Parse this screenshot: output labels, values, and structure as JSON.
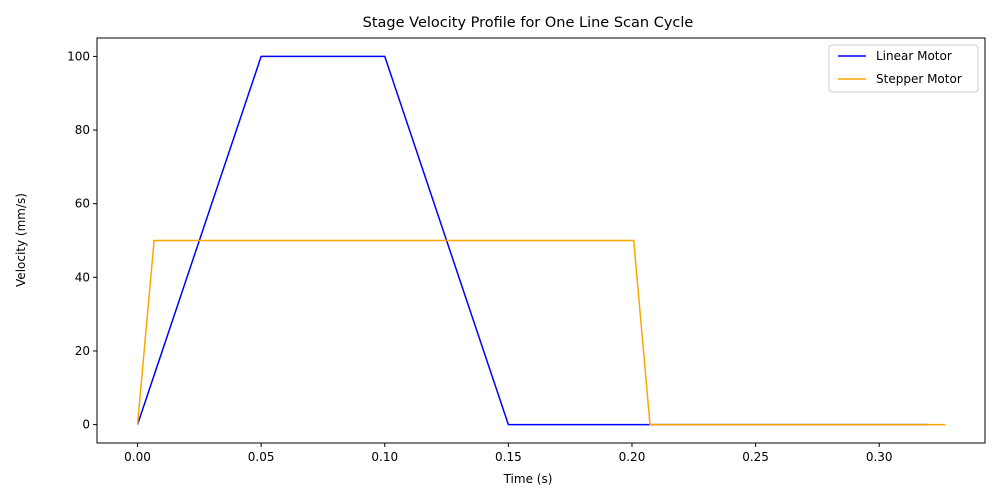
{
  "chart_data": {
    "type": "line",
    "title": "Stage Velocity Profile for One Line Scan Cycle",
    "xlabel": "Time (s)",
    "ylabel": "Velocity (mm/s)",
    "xlim": [
      -0.0164,
      0.3428
    ],
    "ylim": [
      -5,
      105
    ],
    "xticks": [
      0.0,
      0.05,
      0.1,
      0.15,
      0.2,
      0.25,
      0.3
    ],
    "xtick_labels": [
      "0.00",
      "0.05",
      "0.10",
      "0.15",
      "0.20",
      "0.25",
      "0.30"
    ],
    "yticks": [
      0,
      20,
      40,
      60,
      80,
      100
    ],
    "ytick_labels": [
      "0",
      "20",
      "40",
      "60",
      "80",
      "100"
    ],
    "grid": false,
    "legend_position": "top-right",
    "series": [
      {
        "name": "Linear Motor",
        "color": "#0000ff",
        "x": [
          0.0,
          0.05,
          0.1,
          0.15,
          0.32
        ],
        "y": [
          0,
          100,
          100,
          0,
          0
        ]
      },
      {
        "name": "Stepper Motor",
        "color": "#ffa500",
        "x": [
          0.0,
          0.0067,
          0.2007,
          0.2073,
          0.3267
        ],
        "y": [
          0,
          50,
          50,
          0,
          0
        ]
      }
    ]
  }
}
